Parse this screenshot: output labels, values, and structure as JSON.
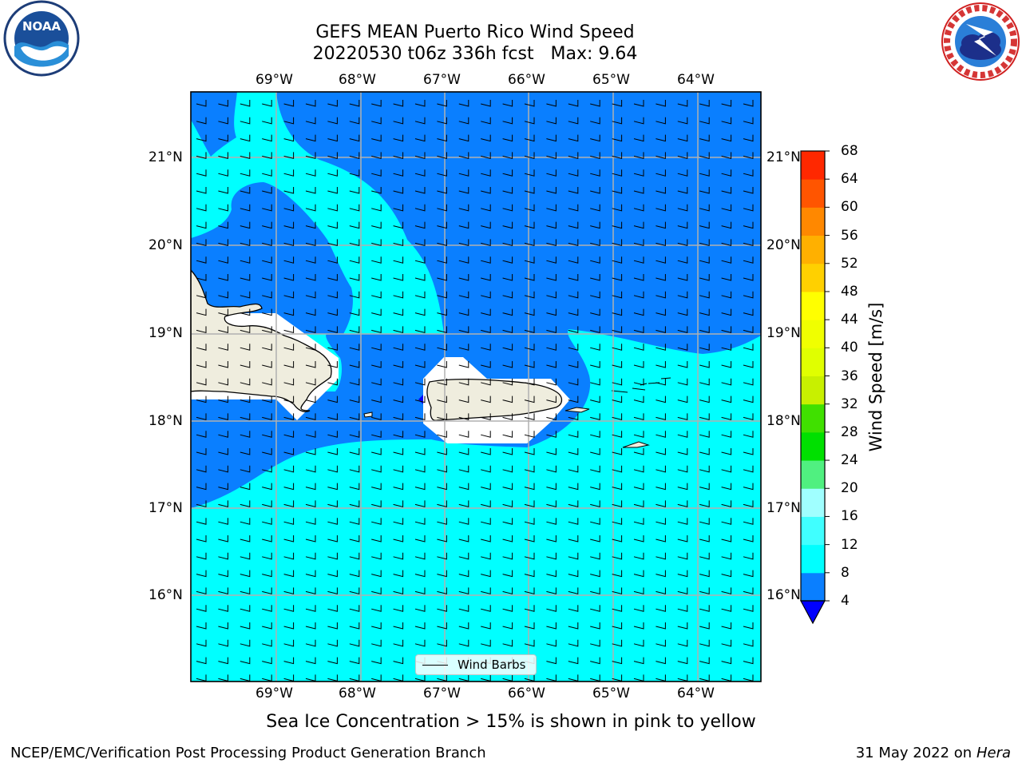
{
  "title": {
    "line1": "GEFS MEAN Puerto Rico Wind Speed",
    "line2": "20220530 t06z 336h fcst   Max: 9.64"
  },
  "logos": {
    "left": "noaa-logo",
    "right": "nws-logo"
  },
  "map": {
    "lon_range": [
      -70,
      -63.25
    ],
    "lat_range": [
      15.0,
      21.75
    ],
    "lon_ticks": [
      {
        "value": -69,
        "label": "69°W"
      },
      {
        "value": -68,
        "label": "68°W"
      },
      {
        "value": -67,
        "label": "67°W"
      },
      {
        "value": -66,
        "label": "66°W"
      },
      {
        "value": -65,
        "label": "65°W"
      },
      {
        "value": -64,
        "label": "64°W"
      }
    ],
    "lat_ticks": [
      {
        "value": 21,
        "label": "21°N"
      },
      {
        "value": 20,
        "label": "20°N"
      },
      {
        "value": 19,
        "label": "19°N"
      },
      {
        "value": 18,
        "label": "18°N"
      },
      {
        "value": 17,
        "label": "17°N"
      },
      {
        "value": 16,
        "label": "16°N"
      }
    ],
    "colors": {
      "level_4_8": "#0a7fff",
      "level_8_12": "#00ffff",
      "below_4": "#0000ff",
      "land": "#efedde",
      "masked": "#ffffff",
      "grid": "#b0b0b0"
    },
    "legend_label": "Wind Barbs"
  },
  "colorbar": {
    "label": "Wind Speed [m/s]",
    "ticks": [
      "4",
      "8",
      "12",
      "16",
      "20",
      "24",
      "28",
      "32",
      "36",
      "40",
      "44",
      "48",
      "52",
      "56",
      "60",
      "64",
      "68"
    ],
    "colors": [
      "#0a7fff",
      "#00ffff",
      "#40ffff",
      "#a0ffff",
      "#50f080",
      "#00e000",
      "#40e000",
      "#c8f000",
      "#e0ff00",
      "#f0ff00",
      "#ffff00",
      "#ffd000",
      "#ffb000",
      "#ff8800",
      "#ff5500",
      "#ff2800",
      "#ff0000"
    ],
    "under_color": "#0000ff"
  },
  "chart_data": {
    "type": "heatmap",
    "title": "GEFS MEAN Puerto Rico Wind Speed",
    "subtitle": "20220530 t06z 336h fcst   Max: 9.64",
    "max_value": 9.64,
    "colorbar_label": "Wind Speed [m/s]",
    "colorbar_range": [
      4,
      68
    ],
    "colorbar_interval": 4,
    "xlim": [
      -70,
      -63.25
    ],
    "ylim": [
      15.0,
      21.75
    ],
    "regions": [
      {
        "range": "4-8",
        "description": "north of Hispaniola/Puerto Rico and coastal waters"
      },
      {
        "range": "8-12",
        "description": "Caribbean Sea south of 17.5°N and plume northwest of Puerto Rico"
      }
    ]
  },
  "note": "Sea Ice Concentration > 15% is shown in pink to yellow",
  "footer": {
    "left": "NCEP/EMC/Verification Post Processing Product Generation Branch",
    "right_date": "31 May 2022 on",
    "right_host": "Hera"
  }
}
